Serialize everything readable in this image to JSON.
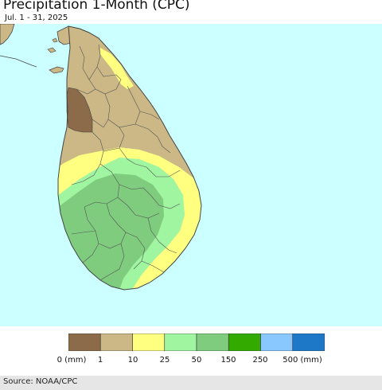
{
  "title": "Precipitation 1-Month (CPC)",
  "subtitle": "Jul. 1 - 31, 2025",
  "source": "Source: NOAA/CPC",
  "colors": {
    "ocean": "#ccffff",
    "land_outside": "#cbb886",
    "border": "#444444"
  },
  "legend": {
    "bins": [
      {
        "color": "#8b6b4a"
      },
      {
        "color": "#cbb886"
      },
      {
        "color": "#ffff80"
      },
      {
        "color": "#a0f5a0"
      },
      {
        "color": "#7fcc7f"
      },
      {
        "color": "#33aa00"
      },
      {
        "color": "#88c8ff"
      },
      {
        "color": "#1e78c8"
      }
    ],
    "tick_labels": [
      "0 (mm)",
      "1",
      "10",
      "25",
      "50",
      "150",
      "250",
      "500 (mm)"
    ]
  },
  "zones": [
    {
      "name": "1-10 mm",
      "color": "#cbb886"
    },
    {
      "name": "10-25 mm",
      "color": "#ffff80"
    },
    {
      "name": "25-50 mm",
      "color": "#a0f5a0"
    },
    {
      "name": "50-150 mm",
      "color": "#7fcc7f"
    },
    {
      "name": "0-1 mm",
      "color": "#8b6b4a"
    }
  ]
}
